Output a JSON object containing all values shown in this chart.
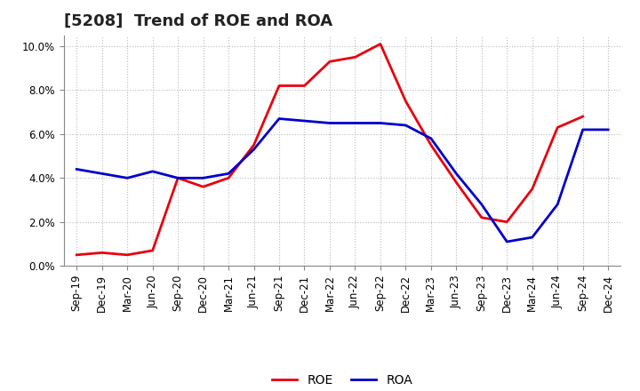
{
  "title": "[5208]  Trend of ROE and ROA",
  "x_labels": [
    "Sep-19",
    "Dec-19",
    "Mar-20",
    "Jun-20",
    "Sep-20",
    "Dec-20",
    "Mar-21",
    "Jun-21",
    "Sep-21",
    "Dec-21",
    "Mar-22",
    "Jun-22",
    "Sep-22",
    "Dec-22",
    "Mar-23",
    "Jun-23",
    "Sep-23",
    "Dec-23",
    "Mar-24",
    "Jun-24",
    "Sep-24",
    "Dec-24"
  ],
  "roe": [
    0.005,
    0.006,
    0.005,
    0.007,
    0.04,
    0.036,
    0.04,
    0.055,
    0.082,
    0.082,
    0.093,
    0.095,
    0.101,
    0.075,
    0.055,
    0.038,
    0.022,
    0.02,
    0.035,
    0.063,
    0.068,
    null
  ],
  "roa": [
    0.044,
    0.042,
    0.04,
    0.043,
    0.04,
    0.04,
    0.042,
    0.053,
    0.067,
    0.066,
    0.065,
    0.065,
    0.065,
    0.064,
    0.058,
    0.042,
    0.028,
    0.011,
    0.013,
    0.028,
    0.062,
    0.062
  ],
  "roe_color": "#e8000d",
  "roa_color": "#0000cc",
  "background_color": "#ffffff",
  "grid_color": "#bbbbbb",
  "title_color": "#222222",
  "ylim": [
    0.0,
    0.105
  ],
  "yticks": [
    0.0,
    0.02,
    0.04,
    0.06,
    0.08,
    0.1
  ],
  "title_fontsize": 13,
  "legend_fontsize": 10,
  "tick_fontsize": 8.5,
  "line_width": 2.0
}
